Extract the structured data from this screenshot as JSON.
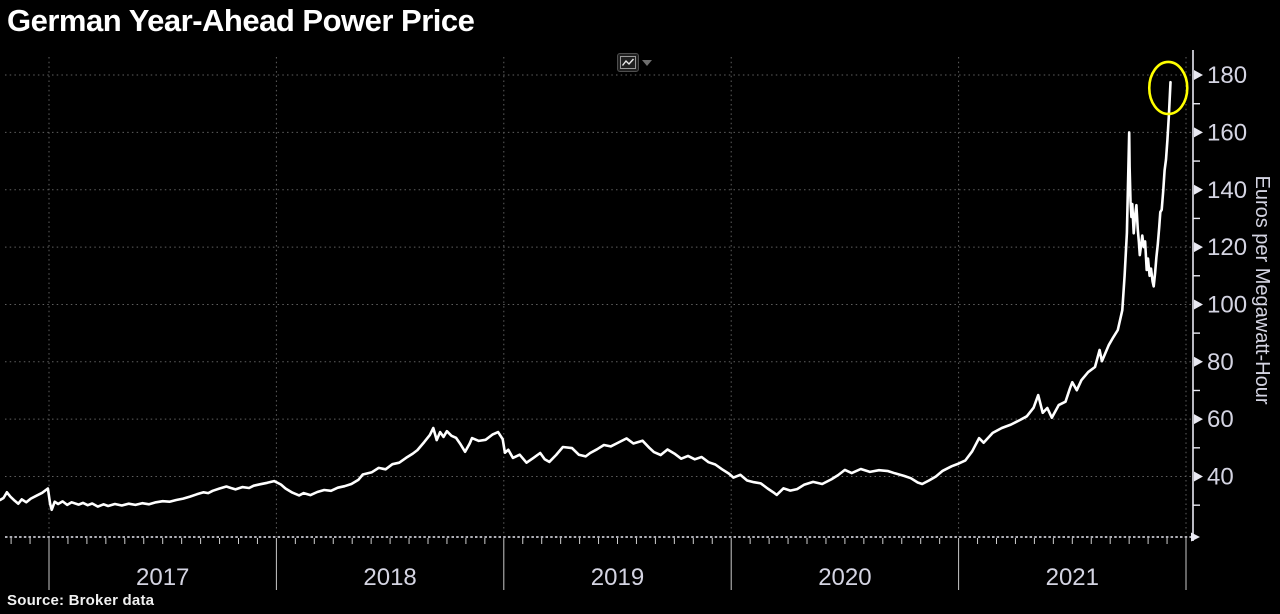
{
  "header": {
    "title": "German Year-Ahead Power Price"
  },
  "toolbar": {
    "chart_type_icon": "line-chart-icon",
    "dropdown_icon": "caret-down-icon"
  },
  "footer": {
    "source": "Source: Broker data"
  },
  "colors": {
    "background": "#000000",
    "series_line": "#ffffff",
    "grid": "#5f5f5f",
    "axis": "#e9e9f2",
    "tick_label": "#d4d4e2",
    "highlight": "#ffff00"
  },
  "chart_data": {
    "type": "line",
    "title": "German Year-Ahead Power Price",
    "xlabel": "",
    "ylabel": "Euros per Megawatt-Hour",
    "source_note": "Source: Broker data",
    "x_range": [
      2016.78,
      2022.03
    ],
    "ylim": [
      18.9,
      186.3
    ],
    "y_ticks": [
      40,
      60,
      80,
      100,
      120,
      140,
      160,
      180
    ],
    "y_minor_ticks": [
      30,
      50,
      70,
      90,
      110,
      130,
      150,
      170,
      190
    ],
    "x_year_boundaries": [
      2017,
      2018,
      2019,
      2020,
      2021,
      2022
    ],
    "x_tick_labels": [
      "2017",
      "2018",
      "2019",
      "2020",
      "2021"
    ],
    "grid": true,
    "legend": null,
    "annotation": {
      "shape": "ellipse",
      "x": 2021.922,
      "value": 175.5,
      "meaning": "peak-highlight"
    },
    "series": [
      {
        "name": "German year-ahead power price (EUR/MWh)",
        "color": "#ffffff",
        "points": [
          [
            2016.785,
            31.8
          ],
          [
            2016.8,
            32.5
          ],
          [
            2016.815,
            34.5
          ],
          [
            2016.83,
            33.0
          ],
          [
            2016.85,
            31.5
          ],
          [
            2016.865,
            30.5
          ],
          [
            2016.88,
            32.0
          ],
          [
            2016.9,
            31.0
          ],
          [
            2016.92,
            32.3
          ],
          [
            2016.945,
            33.3
          ],
          [
            2016.97,
            34.3
          ],
          [
            2016.995,
            35.8
          ],
          [
            2017.005,
            30.5
          ],
          [
            2017.012,
            28.4
          ],
          [
            2017.025,
            31.2
          ],
          [
            2017.04,
            30.4
          ],
          [
            2017.06,
            31.3
          ],
          [
            2017.08,
            30.1
          ],
          [
            2017.1,
            31.0
          ],
          [
            2017.13,
            30.2
          ],
          [
            2017.15,
            30.8
          ],
          [
            2017.17,
            30.0
          ],
          [
            2017.19,
            30.6
          ],
          [
            2017.215,
            29.5
          ],
          [
            2017.24,
            30.3
          ],
          [
            2017.26,
            29.7
          ],
          [
            2017.29,
            30.4
          ],
          [
            2017.32,
            29.9
          ],
          [
            2017.35,
            30.5
          ],
          [
            2017.38,
            30.1
          ],
          [
            2017.41,
            30.7
          ],
          [
            2017.44,
            30.3
          ],
          [
            2017.47,
            31.0
          ],
          [
            2017.5,
            31.4
          ],
          [
            2017.53,
            31.2
          ],
          [
            2017.56,
            31.8
          ],
          [
            2017.59,
            32.3
          ],
          [
            2017.62,
            33.0
          ],
          [
            2017.65,
            33.8
          ],
          [
            2017.68,
            34.5
          ],
          [
            2017.7,
            34.2
          ],
          [
            2017.72,
            35.0
          ],
          [
            2017.75,
            35.8
          ],
          [
            2017.78,
            36.5
          ],
          [
            2017.8,
            36.0
          ],
          [
            2017.82,
            35.5
          ],
          [
            2017.85,
            36.3
          ],
          [
            2017.88,
            36.0
          ],
          [
            2017.9,
            36.8
          ],
          [
            2017.93,
            37.3
          ],
          [
            2017.96,
            37.8
          ],
          [
            2017.99,
            38.4
          ],
          [
            2018.02,
            37.2
          ],
          [
            2018.04,
            35.8
          ],
          [
            2018.07,
            34.4
          ],
          [
            2018.1,
            33.4
          ],
          [
            2018.12,
            34.2
          ],
          [
            2018.15,
            33.5
          ],
          [
            2018.18,
            34.6
          ],
          [
            2018.21,
            35.3
          ],
          [
            2018.24,
            35.0
          ],
          [
            2018.27,
            36.1
          ],
          [
            2018.3,
            36.6
          ],
          [
            2018.33,
            37.4
          ],
          [
            2018.36,
            38.8
          ],
          [
            2018.38,
            40.7
          ],
          [
            2018.42,
            41.5
          ],
          [
            2018.45,
            43.0
          ],
          [
            2018.48,
            42.5
          ],
          [
            2018.51,
            44.3
          ],
          [
            2018.54,
            44.8
          ],
          [
            2018.57,
            46.5
          ],
          [
            2018.6,
            48.0
          ],
          [
            2018.62,
            49.2
          ],
          [
            2018.65,
            52.0
          ],
          [
            2018.675,
            54.5
          ],
          [
            2018.69,
            56.9
          ],
          [
            2018.705,
            52.7
          ],
          [
            2018.72,
            55.5
          ],
          [
            2018.735,
            53.8
          ],
          [
            2018.75,
            55.8
          ],
          [
            2018.77,
            54.2
          ],
          [
            2018.79,
            53.5
          ],
          [
            2018.81,
            51.2
          ],
          [
            2018.83,
            48.6
          ],
          [
            2018.85,
            51.5
          ],
          [
            2018.86,
            53.4
          ],
          [
            2018.89,
            52.4
          ],
          [
            2018.92,
            52.8
          ],
          [
            2018.95,
            54.6
          ],
          [
            2018.975,
            55.5
          ],
          [
            2018.995,
            53.0
          ],
          [
            2019.005,
            48.3
          ],
          [
            2019.02,
            49.3
          ],
          [
            2019.04,
            46.5
          ],
          [
            2019.07,
            47.6
          ],
          [
            2019.1,
            44.8
          ],
          [
            2019.13,
            46.5
          ],
          [
            2019.16,
            48.2
          ],
          [
            2019.18,
            46.0
          ],
          [
            2019.2,
            45.1
          ],
          [
            2019.23,
            47.5
          ],
          [
            2019.26,
            50.3
          ],
          [
            2019.3,
            49.9
          ],
          [
            2019.33,
            47.6
          ],
          [
            2019.36,
            47.0
          ],
          [
            2019.38,
            48.2
          ],
          [
            2019.41,
            49.5
          ],
          [
            2019.44,
            51.0
          ],
          [
            2019.47,
            50.5
          ],
          [
            2019.5,
            51.7
          ],
          [
            2019.54,
            53.3
          ],
          [
            2019.57,
            51.5
          ],
          [
            2019.61,
            52.5
          ],
          [
            2019.64,
            50.0
          ],
          [
            2019.66,
            48.5
          ],
          [
            2019.69,
            47.5
          ],
          [
            2019.72,
            49.4
          ],
          [
            2019.75,
            48.0
          ],
          [
            2019.78,
            46.2
          ],
          [
            2019.81,
            47.2
          ],
          [
            2019.84,
            46.0
          ],
          [
            2019.87,
            46.8
          ],
          [
            2019.9,
            45.0
          ],
          [
            2019.93,
            44.2
          ],
          [
            2019.96,
            42.5
          ],
          [
            2019.99,
            41.0
          ],
          [
            2020.01,
            39.6
          ],
          [
            2020.04,
            40.6
          ],
          [
            2020.07,
            38.6
          ],
          [
            2020.1,
            38.0
          ],
          [
            2020.13,
            37.6
          ],
          [
            2020.16,
            35.8
          ],
          [
            2020.19,
            34.2
          ],
          [
            2020.2,
            33.6
          ],
          [
            2020.23,
            35.9
          ],
          [
            2020.26,
            35.1
          ],
          [
            2020.29,
            35.6
          ],
          [
            2020.32,
            37.1
          ],
          [
            2020.36,
            38.1
          ],
          [
            2020.4,
            37.4
          ],
          [
            2020.44,
            39.0
          ],
          [
            2020.47,
            40.5
          ],
          [
            2020.5,
            42.3
          ],
          [
            2020.53,
            41.2
          ],
          [
            2020.57,
            42.6
          ],
          [
            2020.61,
            41.6
          ],
          [
            2020.65,
            42.2
          ],
          [
            2020.69,
            41.9
          ],
          [
            2020.72,
            41.1
          ],
          [
            2020.76,
            40.2
          ],
          [
            2020.79,
            39.4
          ],
          [
            2020.82,
            37.9
          ],
          [
            2020.84,
            37.4
          ],
          [
            2020.87,
            38.6
          ],
          [
            2020.9,
            40.0
          ],
          [
            2020.93,
            42.0
          ],
          [
            2020.97,
            43.6
          ],
          [
            2021.0,
            44.5
          ],
          [
            2021.03,
            45.6
          ],
          [
            2021.06,
            48.8
          ],
          [
            2021.09,
            53.4
          ],
          [
            2021.11,
            51.8
          ],
          [
            2021.15,
            55.2
          ],
          [
            2021.19,
            56.9
          ],
          [
            2021.23,
            58.1
          ],
          [
            2021.27,
            59.7
          ],
          [
            2021.3,
            61.0
          ],
          [
            2021.33,
            64.0
          ],
          [
            2021.35,
            68.4
          ],
          [
            2021.37,
            62.2
          ],
          [
            2021.39,
            63.9
          ],
          [
            2021.41,
            60.5
          ],
          [
            2021.44,
            64.9
          ],
          [
            2021.47,
            66.1
          ],
          [
            2021.49,
            70.8
          ],
          [
            2021.5,
            72.9
          ],
          [
            2021.52,
            70.1
          ],
          [
            2021.54,
            73.6
          ],
          [
            2021.57,
            76.4
          ],
          [
            2021.6,
            78.2
          ],
          [
            2021.62,
            84.1
          ],
          [
            2021.63,
            80.2
          ],
          [
            2021.66,
            85.8
          ],
          [
            2021.68,
            88.5
          ],
          [
            2021.7,
            91.1
          ],
          [
            2021.72,
            98.0
          ],
          [
            2021.73,
            110.0
          ],
          [
            2021.74,
            125.0
          ],
          [
            2021.75,
            160.0
          ],
          [
            2021.752,
            148.0
          ],
          [
            2021.756,
            136.0
          ],
          [
            2021.76,
            130.5
          ],
          [
            2021.764,
            135.0
          ],
          [
            2021.77,
            124.8
          ],
          [
            2021.776,
            131.0
          ],
          [
            2021.782,
            134.6
          ],
          [
            2021.788,
            126.0
          ],
          [
            2021.793,
            121.7
          ],
          [
            2021.797,
            117.2
          ],
          [
            2021.803,
            121.0
          ],
          [
            2021.808,
            124.0
          ],
          [
            2021.814,
            120.0
          ],
          [
            2021.82,
            122.0
          ],
          [
            2021.827,
            112.0
          ],
          [
            2021.833,
            116.0
          ],
          [
            2021.84,
            110.0
          ],
          [
            2021.846,
            112.5
          ],
          [
            2021.853,
            108.0
          ],
          [
            2021.858,
            106.3
          ],
          [
            2021.864,
            111.0
          ],
          [
            2021.87,
            116.5
          ],
          [
            2021.876,
            121.0
          ],
          [
            2021.882,
            126.9
          ],
          [
            2021.887,
            132.2
          ],
          [
            2021.893,
            133.0
          ],
          [
            2021.9,
            140.0
          ],
          [
            2021.906,
            146.8
          ],
          [
            2021.912,
            150.5
          ],
          [
            2021.918,
            157.3
          ],
          [
            2021.925,
            166.0
          ],
          [
            2021.932,
            177.5
          ]
        ]
      }
    ]
  }
}
